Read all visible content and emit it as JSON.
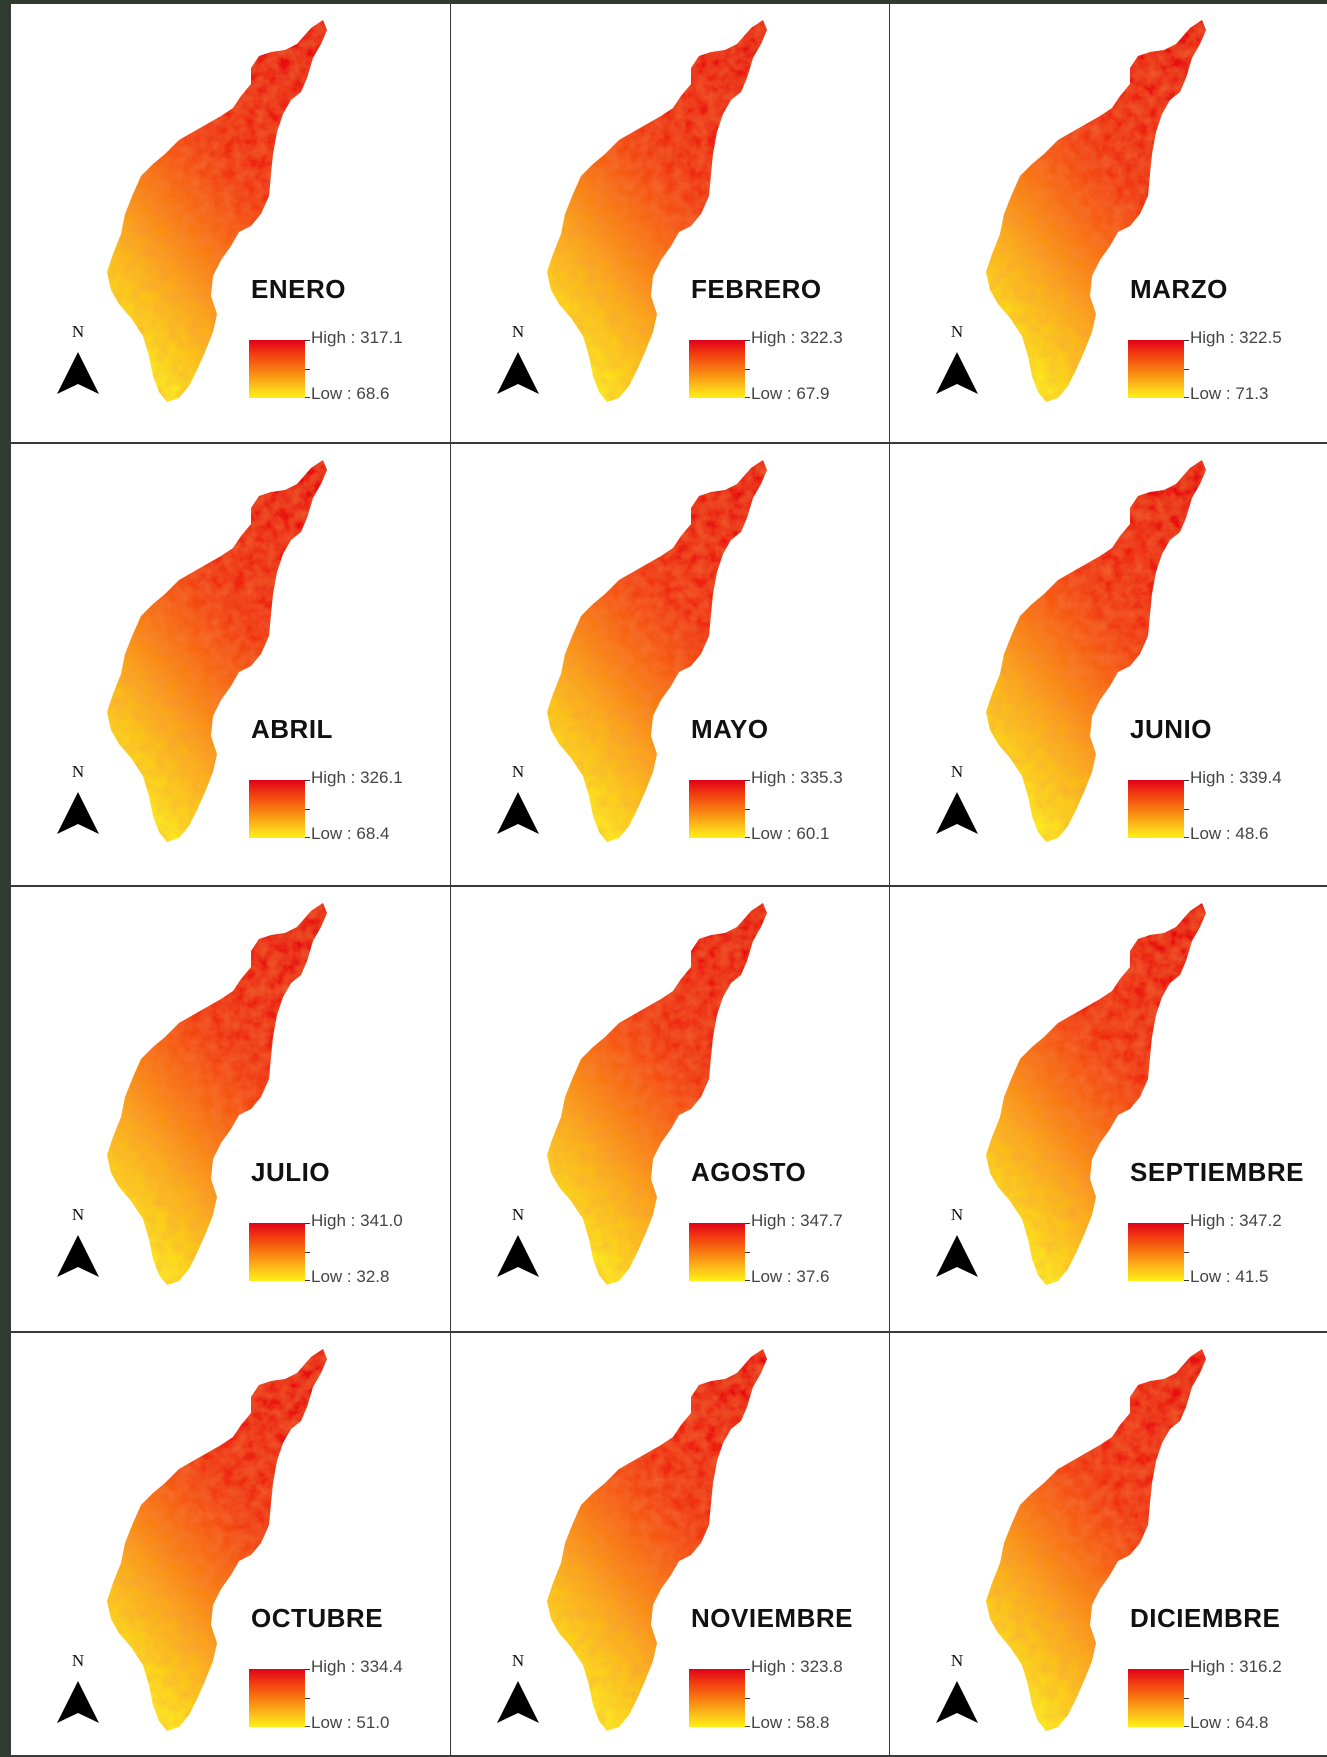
{
  "legend": {
    "high_prefix": "High : ",
    "low_prefix": "Low : ",
    "ramp_colors": [
      "#e0001a",
      "#f98512",
      "#fff014"
    ]
  },
  "north_arrow": {
    "label": "N",
    "icon": "north-arrow-icon"
  },
  "months": [
    {
      "name": "ENERO",
      "high": "317.1",
      "low": "68.6"
    },
    {
      "name": "FEBRERO",
      "high": "322.3",
      "low": "67.9"
    },
    {
      "name": "MARZO",
      "high": "322.5",
      "low": "71.3"
    },
    {
      "name": "ABRIL",
      "high": "326.1",
      "low": "68.4"
    },
    {
      "name": "MAYO",
      "high": "335.3",
      "low": "60.1"
    },
    {
      "name": "JUNIO",
      "high": "339.4",
      "low": "48.6"
    },
    {
      "name": "JULIO",
      "high": "341.0",
      "low": "32.8"
    },
    {
      "name": "AGOSTO",
      "high": "347.7",
      "low": "37.6"
    },
    {
      "name": "SEPTIEMBRE",
      "high": "347.2",
      "low": "41.5"
    },
    {
      "name": "OCTUBRE",
      "high": "334.4",
      "low": "51.0"
    },
    {
      "name": "NOVIEMBRE",
      "high": "323.8",
      "low": "58.8"
    },
    {
      "name": "DICIEMBRE",
      "high": "316.2",
      "low": "64.8"
    }
  ]
}
